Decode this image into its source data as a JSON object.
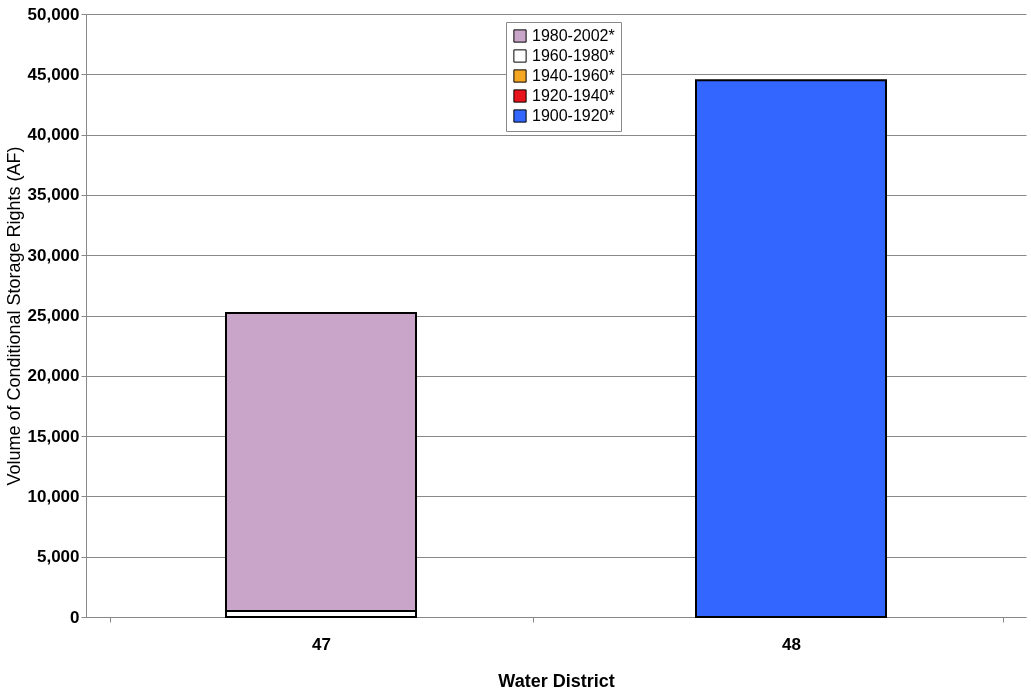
{
  "chart_data": {
    "type": "bar",
    "stacked": true,
    "xlabel": "Water District",
    "ylabel": "Volume of Conditional Storage Rights (AF)",
    "categories": [
      "47",
      "48"
    ],
    "series": [
      {
        "name": "1900-1920*",
        "color": "#3366ff",
        "values": [
          null,
          44500
        ]
      },
      {
        "name": "1920-1940*",
        "color": "#e8131b",
        "values": [
          null,
          null
        ]
      },
      {
        "name": "1940-1960*",
        "color": "#f5a623",
        "values": [
          null,
          null
        ]
      },
      {
        "name": "1960-1980*",
        "color": "#ffffff",
        "values": [
          500,
          null
        ]
      },
      {
        "name": "1980-2002*",
        "color": "#c9a6c9",
        "values": [
          24700,
          null
        ]
      }
    ],
    "ylim": [
      0,
      50000
    ],
    "yticks": [
      0,
      {
        "value": 5000,
        "label": "5,000"
      },
      {
        "value": 10000,
        "label": "10,000"
      },
      {
        "value": 15000,
        "label": "15,000"
      },
      {
        "value": 20000,
        "label": "20,000"
      },
      {
        "value": 25000,
        "label": "25,000"
      },
      {
        "value": 30000,
        "label": "30,000"
      },
      {
        "value": 35000,
        "label": "35,000"
      },
      {
        "value": 40000,
        "label": "40,000"
      },
      {
        "value": 45000,
        "label": "45,000"
      },
      {
        "value": 50000,
        "label": "50,000"
      }
    ],
    "grid": "y",
    "legend": "top"
  }
}
